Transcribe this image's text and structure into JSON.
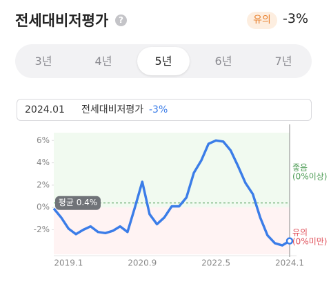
{
  "header": {
    "title": "전세대비저평가",
    "help": "?",
    "badge": "유의",
    "value": "-3%"
  },
  "tabs": {
    "items": [
      "3년",
      "4년",
      "5년",
      "6년",
      "7년"
    ],
    "selected": 2
  },
  "tooltip": {
    "date": "2024.01",
    "label": "전세대비저평가",
    "value": "-3%"
  },
  "chart_data": {
    "type": "line",
    "categories": [
      null,
      null,
      "2019.1",
      null,
      null,
      null,
      null,
      null,
      null,
      null,
      null,
      null,
      "2020.9",
      null,
      null,
      null,
      null,
      null,
      null,
      null,
      null,
      null,
      "2022.5",
      null,
      null,
      null,
      null,
      null,
      null,
      null,
      null,
      null,
      "2024.1"
    ],
    "values": [
      -0.1,
      -0.9,
      -1.9,
      -2.4,
      -2.0,
      -1.7,
      -2.2,
      -2.3,
      -2.1,
      -1.7,
      -2.2,
      0.0,
      2.3,
      -0.6,
      -1.5,
      -0.9,
      0.1,
      0.1,
      0.9,
      3.1,
      4.2,
      5.7,
      6.0,
      5.9,
      5.1,
      3.7,
      2.2,
      1.2,
      -0.9,
      -2.5,
      -3.2,
      -3.4,
      -3.0
    ],
    "color": "#3b7de8",
    "ylim": [
      -4.2,
      6.7
    ],
    "yticks": [
      {
        "value": 6,
        "label": "6%"
      },
      {
        "value": 4,
        "label": "4%"
      },
      {
        "value": 2,
        "label": "2%"
      },
      {
        "value": 0,
        "label": "0%"
      },
      {
        "value": -2,
        "label": "-2%"
      }
    ],
    "average": {
      "value": 0.4,
      "label": "평균 0.4%"
    },
    "zones": [
      {
        "label": "좋음",
        "range": "(0%이상)",
        "color": "#4a9a52",
        "background": "#f1faf0"
      },
      {
        "label": "유의",
        "range": "(0%미만)",
        "color": "#e0505a",
        "background": "#fff3f3"
      }
    ]
  }
}
